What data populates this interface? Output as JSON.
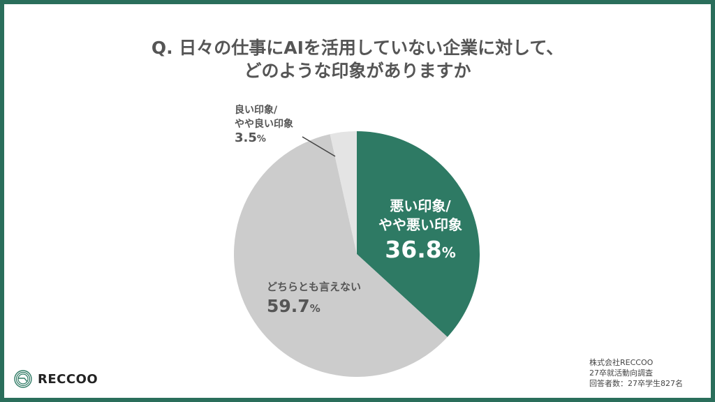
{
  "title": {
    "line1": "Q. 日々の仕事にAIを活用していない企業に対して、",
    "line2": "どのような印象がありますか"
  },
  "colors": {
    "frame": "#2a6e5b",
    "bad": "#2e7a64",
    "neutral": "#cccccc",
    "good": "#e4e4e4",
    "text": "#555555"
  },
  "chart_data": {
    "type": "pie",
    "title": "Q. 日々の仕事にAIを活用していない企業に対して、どのような印象がありますか",
    "categories": [
      "悪い印象/やや悪い印象",
      "どちらとも言えない",
      "良い印象/やや良い印象"
    ],
    "values": [
      36.8,
      59.7,
      3.5
    ],
    "unit": "%",
    "start_angle": "12 o'clock, clockwise",
    "colors": [
      "#2e7a64",
      "#cccccc",
      "#e4e4e4"
    ],
    "labels": [
      {
        "line1": "悪い印象/",
        "line2": "やや悪い印象",
        "value": "36.8",
        "unit": "%"
      },
      {
        "line1": "どちらとも言えない",
        "value": "59.7",
        "unit": "%"
      },
      {
        "line1": "良い印象/",
        "line2": "やや良い印象",
        "value": "3.5",
        "unit": "%"
      }
    ]
  },
  "logo": {
    "text": "RECCOO"
  },
  "source": {
    "line1": "株式会社RECCOO",
    "line2": "27卒就活動向調査",
    "line3": "回答者数：27卒学生827名"
  }
}
